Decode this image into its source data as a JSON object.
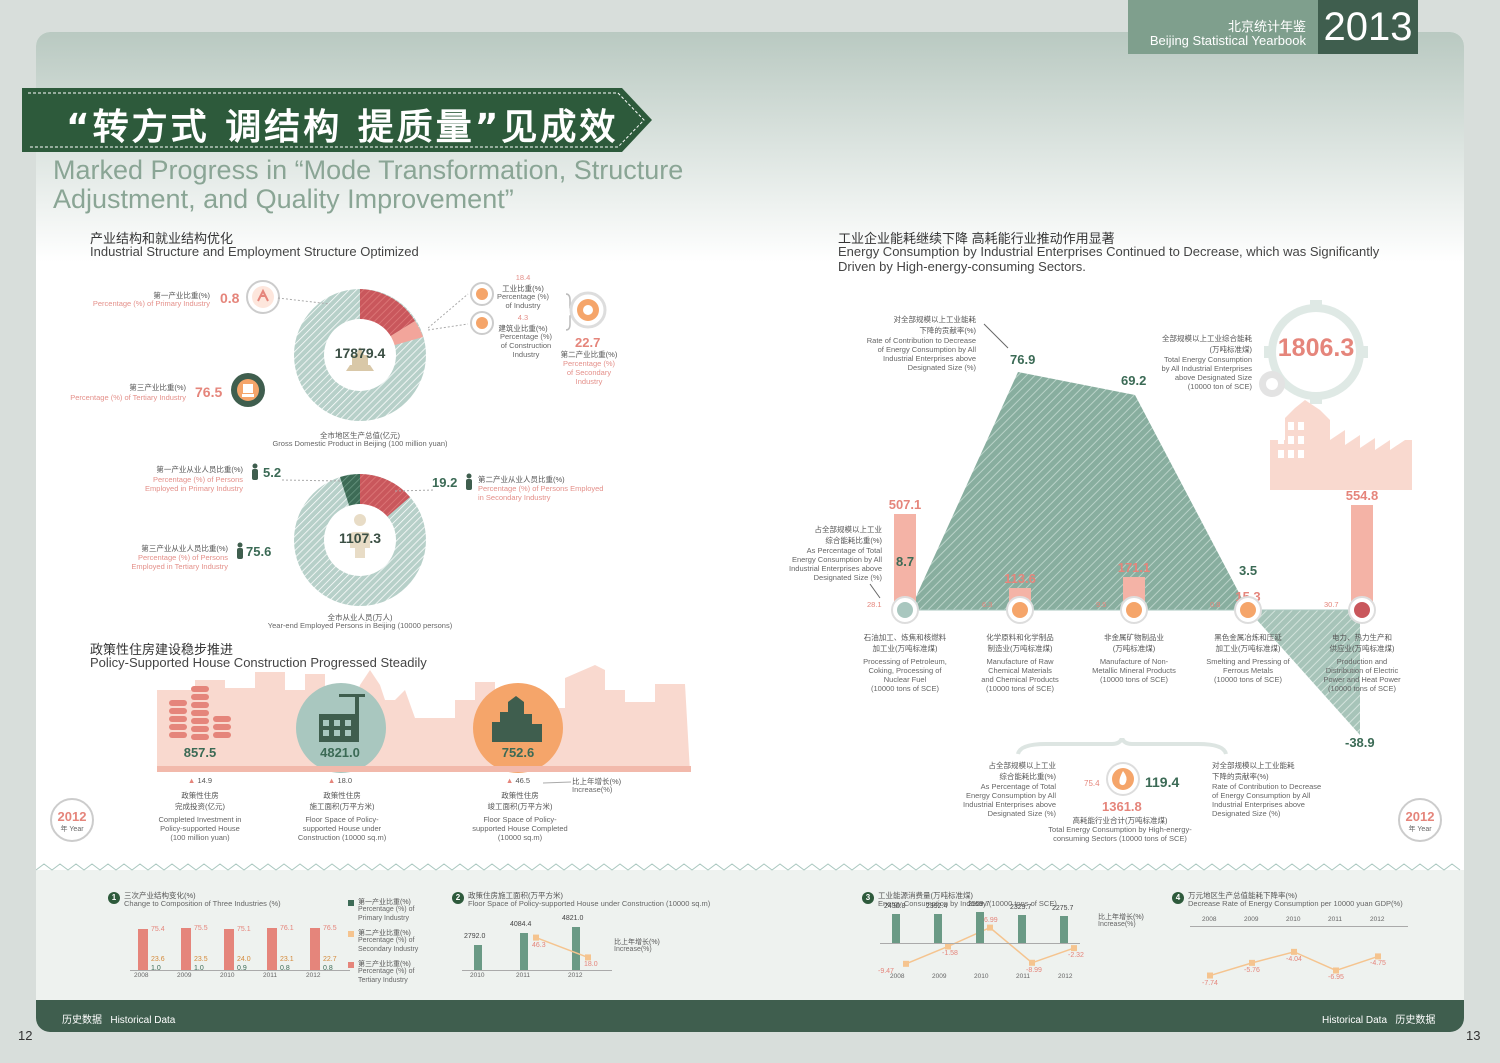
{
  "header": {
    "year": "2013",
    "book_cn": "北京统计年鉴",
    "book_en": "Beijing Statistical Yearbook"
  },
  "banner": {
    "cn": "“转方式 调结构 提质量”见成效",
    "en_line1": "Marked Progress in “Mode Transformation, Structure",
    "en_line2": "Adjustment, and Quality Improvement”"
  },
  "colors": {
    "dark_green": "#3f5e4e",
    "teal": "#a9c7bf",
    "pink": "#f2b9ab",
    "salmon": "#e5857b",
    "orange": "#f5a56a",
    "light_green_bg": "#eef2ef"
  },
  "gdp": {
    "title_cn": "产业结构和就业结构优化",
    "title_en": "Industrial Structure and Employment Structure Optimized",
    "total": "17879.4",
    "total_cn": "全市地区生产总值(亿元)",
    "total_en": "Gross Domestic Product in Beijing (100 million yuan)",
    "primary_cn": "第一产业比重(%)",
    "primary_en": "Percentage (%) of Primary Industry",
    "primary_val": "0.8",
    "tertiary_cn": "第三产业比重(%)",
    "tertiary_en": "Percentage (%) of Tertiary Industry",
    "tertiary_val": "76.5",
    "industry_val": "18.4",
    "industry_cn": "工业比重(%)",
    "industry_en1": "Percentage (%)",
    "industry_en2": "of Industry",
    "construction_val": "4.3",
    "construction_cn": "建筑业比重(%)",
    "construction_en1": "Percentage (%)",
    "construction_en2": "of Construction",
    "construction_en3": "Industry",
    "secondary_val": "22.7",
    "secondary_cn": "第二产业比重(%)",
    "secondary_en1": "Percentage (%)",
    "secondary_en2": "of Secondary",
    "secondary_en3": "Industry"
  },
  "employ": {
    "total": "1107.3",
    "total_cn": "全市从业人员(万人)",
    "total_en": "Year-end Employed Persons in Beijing (10000 persons)",
    "primary_cn": "第一产业从业人员比重(%)",
    "primary_en1": "Percentage (%) of Persons",
    "primary_en2": "Employed in Primary Industry",
    "primary_val": "5.2",
    "secondary_cn": "第二产业从业人员比重(%)",
    "secondary_en1": "Percentage (%) of Persons Employed",
    "secondary_en2": "in Secondary Industry",
    "secondary_val": "19.2",
    "tertiary_cn": "第三产业从业人员比重(%)",
    "tertiary_en1": "Percentage (%) of Persons",
    "tertiary_en2": "Employed in Tertiary Industry",
    "tertiary_val": "75.6"
  },
  "housing": {
    "title_cn": "政策性住房建设稳步推进",
    "title_en": "Policy-Supported House Construction Progressed Steadily",
    "items": [
      {
        "value": "857.5",
        "growth": "14.9",
        "cn1": "政策性住房",
        "cn2": "完成投资(亿元)",
        "en1": "Completed Investment in",
        "en2": "Policy-supported House",
        "en3": "(100 million yuan)"
      },
      {
        "value": "4821.0",
        "growth": "18.0",
        "cn1": "政策性住房",
        "cn2": "施工面积(万平方米)",
        "en1": "Floor Space of Policy-",
        "en2": "supported House under",
        "en3": "Construction (10000 sq.m)"
      },
      {
        "value": "752.6",
        "growth": "46.5",
        "cn1": "政策性住房",
        "cn2": "竣工面积(万平方米)",
        "en1": "Floor Space of Policy-",
        "en2": "supported House Completed",
        "en3": "(10000 sq.m)"
      }
    ],
    "increase_cn": "比上年增长(%)",
    "increase_en": "Increase(%)",
    "stamp_year": "2012",
    "stamp_label": "年 Year"
  },
  "energy": {
    "title_cn": "工业企业能耗继续下降 高耗能行业推动作用显著",
    "title_en1": "Energy Consumption by Industrial Enterprises Continued to Decrease, which was Significantly",
    "title_en2": "Driven by High-energy-consuming Sectors.",
    "total": "1806.3",
    "total_cn1": "全部规模以上工业综合能耗",
    "total_cn2": "(万吨标准煤)",
    "total_en1": "Total Energy Consumption",
    "total_en2": "by All Industrial Enterprises",
    "total_en3": "above Designated Size",
    "total_en4": "(10000 ton of SCE)",
    "contrib_cn1": "对全部规模以上工业能耗",
    "contrib_cn2": "下降的贡献率(%)",
    "contrib_en1": "Rate of Contribution to Decrease",
    "contrib_en2": "of Energy Consumption by All",
    "contrib_en3": "Industrial Enterprises above",
    "contrib_en4": "Designated Size (%)",
    "share_cn1": "占全部规模以上工业",
    "share_cn2": "综合能耗比重(%)",
    "share_en1": "As Percentage of Total",
    "share_en2": "Energy Consumption by All",
    "share_en3": "Industrial Enterprises above",
    "share_en4": "Designated Size (%)",
    "peak1": "76.9",
    "peak2": "69.2",
    "neg_val": "-38.9",
    "sectors": [
      {
        "consumption": "507.1",
        "share": "28.1",
        "contrib": "8.7",
        "cn1": "石油加工、炼焦和核燃料",
        "cn2": "加工业(万吨标准煤)",
        "en1": "Processing of Petroleum,",
        "en2": "Coking, Processing of",
        "en3": "Nuclear Fuel",
        "en4": "(10000 tons of SCE)"
      },
      {
        "consumption": "113.6",
        "share": "6.3",
        "contrib": "",
        "cn1": "化学原料和化学制品",
        "cn2": "制造业(万吨标准煤)",
        "en1": "Manufacture of Raw",
        "en2": "Chemical Materials",
        "en3": "and Chemical Products",
        "en4": "(10000 tons of SCE)"
      },
      {
        "consumption": "171.1",
        "share": "9.5",
        "contrib": "",
        "cn1": "非金属矿物制品业",
        "cn2": "(万吨标准煤)",
        "en1": "Manufacture of Non-",
        "en2": "Metallic Mineral Products",
        "en3": "(10000 tons of SCE)",
        "en4": ""
      },
      {
        "consumption": "15.3",
        "share": "0.8",
        "contrib": "3.5",
        "cn1": "黑色金属冶炼和压延",
        "cn2": "加工业(万吨标准煤)",
        "en1": "Smelting and Pressing of",
        "en2": "Ferrous Metals",
        "en3": "(10000 tons of SCE)",
        "en4": ""
      },
      {
        "consumption": "554.8",
        "share": "30.7",
        "contrib": "",
        "cn1": "电力、热力生产和",
        "cn2": "供应业(万吨标准煤)",
        "en1": "Production and",
        "en2": "Distribution of Electric",
        "en3": "Power and Heat Power",
        "en4": "(10000 tons of SCE)"
      }
    ],
    "high_share": "75.4",
    "high_contrib": "119.4",
    "high_total": "1361.8",
    "high_cn": "高耗能行业合计(万吨标准煤)",
    "high_en1": "Total Energy Consumption by High-energy-",
    "high_en2": "consuming Sectors (10000 tons of SCE)"
  },
  "footer": {
    "left_cn": "历史数据",
    "left_en": "Historical Data",
    "right_en": "Historical Data",
    "right_cn": "历史数据",
    "page_left": "12",
    "page_right": "13"
  },
  "chart_data": [
    {
      "type": "bar",
      "num": "1",
      "title_cn": "三次产业结构变化(%)",
      "title_en": "Change to Composition of Three Industries (%)",
      "categories": [
        "2008",
        "2009",
        "2010",
        "2011",
        "2012"
      ],
      "series": [
        {
          "name": "第一产业比重(%) Percentage (%) of Primary Industry",
          "values": [
            1.0,
            1.0,
            0.9,
            0.8,
            0.8
          ]
        },
        {
          "name": "第二产业比重(%) Percentage (%) of Secondary Industry",
          "values": [
            23.6,
            23.5,
            24.0,
            23.1,
            22.7
          ]
        },
        {
          "name": "第三产业比重(%) Percentage (%) of Tertiary Industry",
          "values": [
            75.4,
            75.5,
            75.1,
            76.1,
            76.5
          ]
        }
      ],
      "legend_cn": [
        "第一产业比重(%)",
        "第二产业比重(%)",
        "第三产业比重(%)"
      ],
      "legend_en1": [
        "Percentage (%) of",
        "Percentage (%) of",
        "Percentage (%) of"
      ],
      "legend_en2": [
        "Primary Industry",
        "Secondary Industry",
        "Tertiary Industry"
      ]
    },
    {
      "type": "bar",
      "num": "2",
      "title_cn": "政策住房施工面积(万平方米)",
      "title_en": "Floor Space of Policy-supported House under Construction (10000 sq.m)",
      "categories": [
        "2010",
        "2011",
        "2012"
      ],
      "series": [
        {
          "name": "",
          "values": [
            2792.0,
            4084.4,
            4821.0
          ]
        },
        {
          "name": "比上年增长(%) Increase(%)",
          "values": [
            null,
            46.3,
            18.0
          ]
        }
      ],
      "legend_cn": "比上年增长(%)",
      "legend_en": "Increase(%)"
    },
    {
      "type": "bar",
      "num": "3",
      "title_cn": "工业能源消费量(万吨标准煤)",
      "title_en": "Energy Consumption by Industry (10000 tons of SCE)",
      "categories": [
        "2008",
        "2009",
        "2010",
        "2011",
        "2012"
      ],
      "series": [
        {
          "name": "",
          "values": [
            2430.8,
            2392.4,
            2559.7,
            2329.7,
            2275.7
          ]
        },
        {
          "name": "比上年增长(%) Increase(%)",
          "values": [
            -9.47,
            -1.58,
            6.99,
            -8.99,
            -2.32
          ]
        }
      ],
      "legend_cn": "比上年增长(%)",
      "legend_en": "Increase(%)"
    },
    {
      "type": "line",
      "num": "4",
      "title_cn": "万元地区生产总值能耗下降率(%)",
      "title_en": "Decrease Rate of Energy Consumption per 10000 yuan GDP(%)",
      "categories": [
        "2008",
        "2009",
        "2010",
        "2011",
        "2012"
      ],
      "series": [
        {
          "name": "",
          "values": [
            -7.74,
            -5.76,
            -4.04,
            -6.95,
            -4.75
          ]
        }
      ]
    }
  ]
}
